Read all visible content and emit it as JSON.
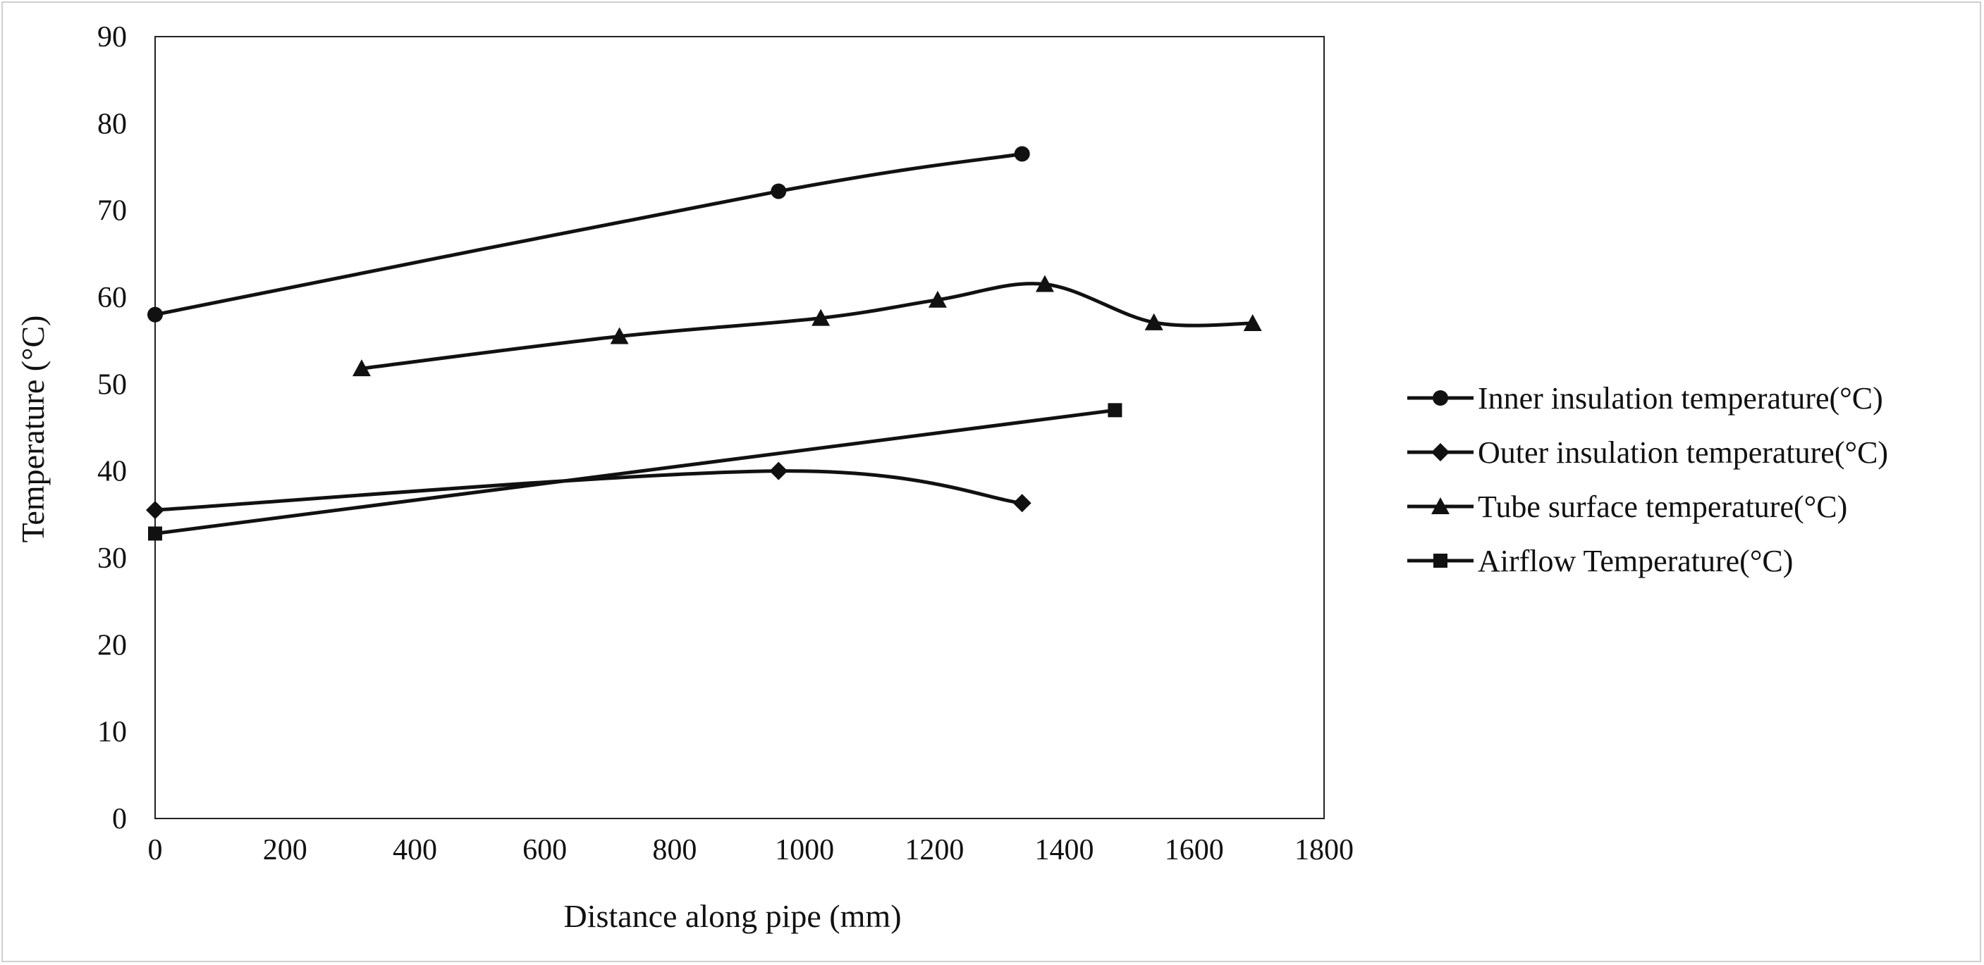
{
  "chart_data": {
    "type": "line",
    "title": "",
    "xlabel": "Distance along pipe (mm)",
    "ylabel": "Temperature (°C)",
    "xlim": [
      0,
      1800
    ],
    "ylim": [
      0,
      90
    ],
    "xticks": [
      "0",
      "200",
      "400",
      "600",
      "800",
      "1000",
      "1200",
      "1400",
      "1600",
      "1800"
    ],
    "yticks": [
      "0",
      "10",
      "20",
      "30",
      "40",
      "50",
      "60",
      "70",
      "80",
      "90"
    ],
    "grid": false,
    "legend_position": "right",
    "series": [
      {
        "name": "Inner insulation temperature(°C)",
        "marker": "circle",
        "points": [
          [
            0,
            58
          ],
          [
            960,
            72.2
          ],
          [
            1335,
            76.5
          ]
        ]
      },
      {
        "name": "Outer insulation temperature(°C)",
        "marker": "diamond",
        "points": [
          [
            0,
            35.5
          ],
          [
            960,
            40
          ],
          [
            1335,
            36.3
          ]
        ]
      },
      {
        "name": "Tube surface temperature(°C)",
        "marker": "triangle",
        "points": [
          [
            318,
            51.8
          ],
          [
            715,
            55.5
          ],
          [
            1025,
            57.6
          ],
          [
            1205,
            59.7
          ],
          [
            1370,
            61.5
          ],
          [
            1538,
            57.1
          ],
          [
            1690,
            57
          ]
        ]
      },
      {
        "name": "Airflow Temperature(°C)",
        "marker": "square",
        "points": [
          [
            0,
            32.8
          ],
          [
            1478,
            47
          ]
        ]
      }
    ],
    "line_color": "#111111"
  }
}
